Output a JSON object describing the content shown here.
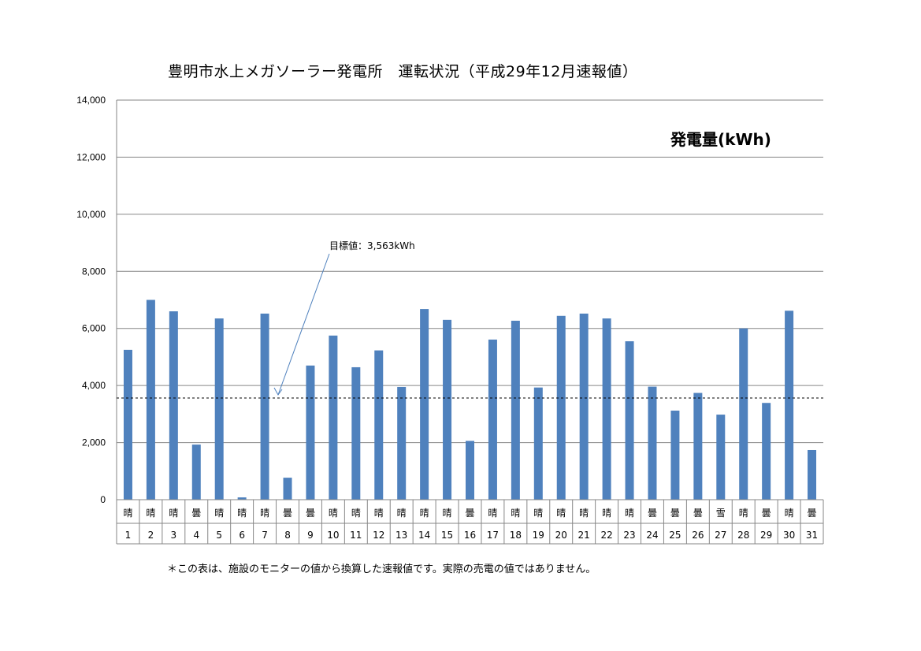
{
  "chart_data": {
    "type": "bar",
    "title": "豊明市水上メガソーラー発電所　運転状況（平成29年12月速報値）",
    "series_label": "発電量(kWh)",
    "categories": [
      "1",
      "2",
      "3",
      "4",
      "5",
      "6",
      "7",
      "8",
      "9",
      "10",
      "11",
      "12",
      "13",
      "14",
      "15",
      "16",
      "17",
      "18",
      "19",
      "20",
      "21",
      "22",
      "23",
      "24",
      "25",
      "26",
      "27",
      "28",
      "29",
      "30",
      "31"
    ],
    "weather": [
      "晴",
      "晴",
      "晴",
      "曇",
      "晴",
      "晴",
      "晴",
      "曇",
      "曇",
      "晴",
      "晴",
      "晴",
      "晴",
      "晴",
      "晴",
      "曇",
      "晴",
      "晴",
      "晴",
      "晴",
      "晴",
      "晴",
      "晴",
      "曇",
      "曇",
      "曇",
      "雪",
      "晴",
      "曇",
      "晴",
      "曇"
    ],
    "series": [
      {
        "values": [
          5250,
          7000,
          6600,
          1930,
          6350,
          80,
          6520,
          770,
          4700,
          5750,
          4640,
          5230,
          3950,
          6680,
          6300,
          2060,
          5610,
          6270,
          3930,
          6440,
          6520,
          6350,
          5550,
          3960,
          3120,
          3740,
          2980,
          6000,
          3390,
          6620,
          1740
        ]
      }
    ],
    "ylim": [
      0,
      14000
    ],
    "yticks": [
      "0",
      "2,000",
      "4,000",
      "6,000",
      "8,000",
      "10,000",
      "12,000",
      "14,000"
    ],
    "ytick_values": [
      0,
      2000,
      4000,
      6000,
      8000,
      10000,
      12000,
      14000
    ],
    "grid": true,
    "target": {
      "value": 3563,
      "label": "目標値：3,563kWh"
    },
    "colors": {
      "bar": "#4f81bd",
      "grid": "#868686",
      "target_line": "#000000",
      "arrow": "#4f81bd"
    }
  },
  "footnote": "＊この表は、施設のモニターの値から換算した速報値です。実際の売電の値ではありません。"
}
